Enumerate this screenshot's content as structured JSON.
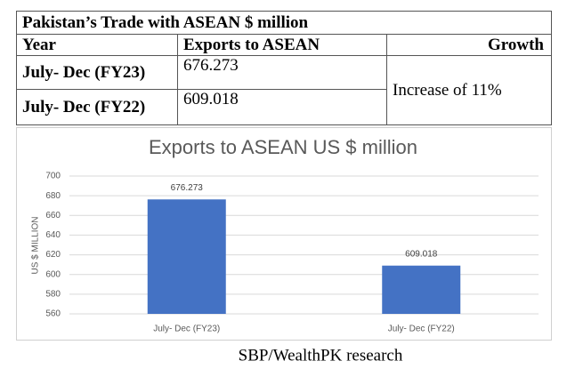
{
  "table": {
    "title": "Pakistan’s Trade with ASEAN $ million",
    "header": [
      "Year",
      "Exports to ASEAN",
      "Growth"
    ],
    "rows": [
      [
        "July- Dec (FY23)",
        "676.273"
      ],
      [
        "July- Dec (FY22)",
        "609.018"
      ]
    ],
    "growth": "Increase of 11%"
  },
  "chart_data": {
    "type": "bar",
    "title": "Exports to ASEAN US $ million",
    "y_label": "US $ MILLION",
    "categories": [
      "July- Dec (FY23)",
      "July- Dec (FY22)"
    ],
    "values": [
      676.273,
      609.018
    ],
    "color": "#4472c4",
    "ylim": [
      560,
      700
    ],
    "yticks": [
      560,
      580,
      600,
      620,
      640,
      660,
      680,
      700
    ],
    "grid": true
  },
  "caption": "SBP/WealthPK research"
}
